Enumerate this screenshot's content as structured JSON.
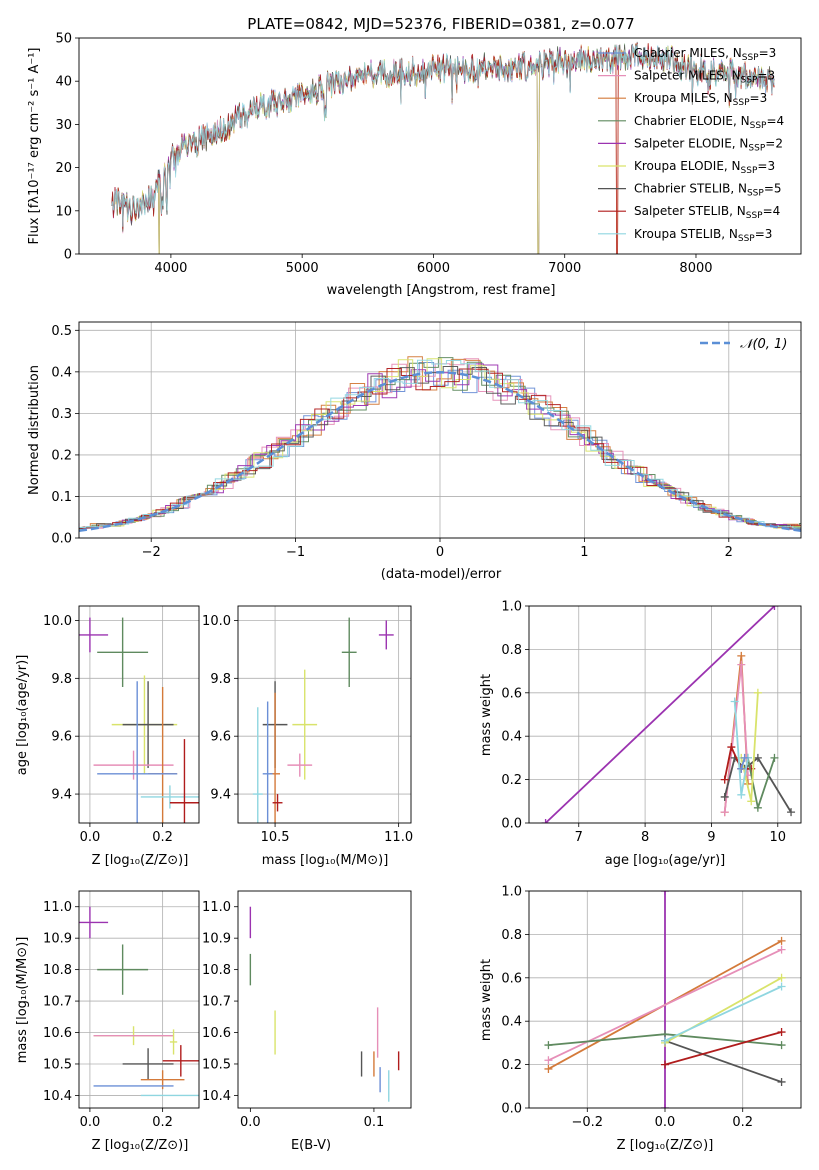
{
  "figure": {
    "title": "PLATE=0842, MJD=52376, FIBERID=0381, z=0.077"
  },
  "colors": {
    "chabrier_miles": "#6b8fd6",
    "salpeter_miles": "#e68fb8",
    "kroupa_miles": "#d47a3a",
    "chabrier_elodie": "#5f8a5f",
    "salpeter_elodie": "#9b33b0",
    "kroupa_elodie": "#d9e36b",
    "chabrier_stelib": "#555555",
    "salpeter_stelib": "#b01c1c",
    "kroupa_stelib": "#8fd6e0",
    "normal": "#5b8fd6",
    "grid": "#b0b0b0"
  },
  "chart_data": [
    {
      "id": "spectrum",
      "type": "line",
      "xlabel": "wavelength [Angstrom, rest frame]",
      "ylabel": "Flux [fλ10⁻¹⁷ erg cm⁻² s⁻¹ A⁻¹]",
      "xlim": [
        3300,
        8800
      ],
      "ylim": [
        0,
        50
      ],
      "xticks": [
        4000,
        5000,
        6000,
        7000,
        8000
      ],
      "yticks": [
        0,
        10,
        20,
        30,
        40,
        50
      ],
      "grid": false,
      "legend_position": "top-right",
      "continuum": {
        "x": [
          3550,
          3700,
          3850,
          3950,
          4050,
          4200,
          4400,
          4600,
          4800,
          5000,
          5200,
          5400,
          5600,
          5800,
          6000,
          6200,
          6400,
          6600,
          6800,
          7000,
          7200,
          7400,
          7600,
          7800,
          8000,
          8200,
          8400,
          8600
        ],
        "y": [
          13,
          10,
          13,
          19,
          24,
          26,
          29,
          33,
          35,
          37,
          39,
          41,
          42,
          42,
          43,
          43,
          43,
          43,
          44,
          45,
          45,
          45,
          46,
          45,
          43,
          42,
          41,
          40
        ]
      },
      "series": [
        {
          "name": "Chabrier MILES, N_SSP=3",
          "color_key": "chabrier_miles",
          "cutoff_x": null
        },
        {
          "name": "Salpeter MILES, N_SSP=3",
          "color_key": "salpeter_miles",
          "cutoff_x": null
        },
        {
          "name": "Kroupa MILES, N_SSP=3",
          "color_key": "kroupa_miles",
          "cutoff_x": 7400
        },
        {
          "name": "Chabrier ELODIE, N_SSP=4",
          "color_key": "chabrier_elodie",
          "cutoff_x": 6800
        },
        {
          "name": "Salpeter ELODIE, N_SSP=2",
          "color_key": "salpeter_elodie",
          "cutoff_x": 6800
        },
        {
          "name": "Kroupa ELODIE, N_SSP=3",
          "color_key": "kroupa_elodie",
          "cutoff_x": 6800
        },
        {
          "name": "Chabrier STELIB, N_SSP=5",
          "color_key": "chabrier_stelib",
          "cutoff_x": null
        },
        {
          "name": "Salpeter STELIB, N_SSP=4",
          "color_key": "salpeter_stelib",
          "cutoff_x": 7400
        },
        {
          "name": "Kroupa STELIB, N_SSP=3",
          "color_key": "kroupa_stelib",
          "cutoff_x": null
        }
      ]
    },
    {
      "id": "residuals",
      "type": "line",
      "xlabel": "(data-model)/error",
      "ylabel": "Normed distribution",
      "xlim": [
        -2.5,
        2.5
      ],
      "ylim": [
        0,
        0.52
      ],
      "xticks": [
        -2,
        -1,
        0,
        1,
        2
      ],
      "yticks": [
        0.0,
        0.1,
        0.2,
        0.3,
        0.4,
        0.5
      ],
      "grid": true,
      "legend_position": "top-right",
      "normal_label": "𝒩(0, 1)",
      "bin_width": 0.1
    },
    {
      "id": "z_age",
      "type": "scatter",
      "xlabel": "Z [log₁₀(Z/Z⊙)]",
      "ylabel": "age  [log₁₀(age/yr)]",
      "xlim": [
        -0.03,
        0.3
      ],
      "ylim": [
        9.3,
        10.05
      ],
      "xticks": [
        0.0,
        0.2
      ],
      "yticks": [
        9.4,
        9.6,
        9.8,
        10.0
      ],
      "grid": true,
      "points": [
        {
          "color_key": "salpeter_elodie",
          "x": 0.0,
          "xerr": 0.05,
          "y": 9.95,
          "yerr": 0.06
        },
        {
          "color_key": "chabrier_elodie",
          "x": 0.09,
          "xerr": 0.07,
          "y": 9.89,
          "yerr": 0.12
        },
        {
          "color_key": "kroupa_elodie",
          "x": 0.15,
          "xerr": 0.09,
          "y": 9.64,
          "yerr": 0.17
        },
        {
          "color_key": "chabrier_stelib",
          "x": 0.16,
          "xerr": 0.07,
          "y": 9.64,
          "yerr": 0.15
        },
        {
          "color_key": "salpeter_miles",
          "x": 0.12,
          "xerr": 0.11,
          "y": 9.5,
          "yerr": 0.05
        },
        {
          "color_key": "kroupa_miles",
          "x": 0.2,
          "xerr": 0.04,
          "y": 9.47,
          "yerr": 0.3
        },
        {
          "color_key": "chabrier_miles",
          "x": 0.13,
          "xerr": 0.11,
          "y": 9.47,
          "yerr": 0.32
        },
        {
          "color_key": "kroupa_stelib",
          "x": 0.22,
          "xerr": 0.08,
          "y": 9.39,
          "yerr": 0.04
        },
        {
          "color_key": "salpeter_stelib",
          "x": 0.26,
          "xerr": 0.04,
          "y": 9.37,
          "yerr": 0.22
        }
      ]
    },
    {
      "id": "mass_age",
      "type": "scatter",
      "xlabel": "mass [log₁₀(M/M⊙)]",
      "ylabel": "",
      "xlim": [
        10.35,
        11.05
      ],
      "ylim": [
        9.3,
        10.05
      ],
      "xticks": [
        10.5,
        11.0
      ],
      "yticks": [
        9.4,
        9.6,
        9.8,
        10.0
      ],
      "grid": true,
      "points": [
        {
          "color_key": "salpeter_elodie",
          "x": 10.95,
          "xerr": 0.03,
          "y": 9.95,
          "yerr": 0.05
        },
        {
          "color_key": "chabrier_elodie",
          "x": 10.8,
          "xerr": 0.03,
          "y": 9.89,
          "yerr": 0.12
        },
        {
          "color_key": "kroupa_elodie",
          "x": 10.62,
          "xerr": 0.05,
          "y": 9.64,
          "yerr": 0.19
        },
        {
          "color_key": "chabrier_stelib",
          "x": 10.5,
          "xerr": 0.05,
          "y": 9.64,
          "yerr": 0.15
        },
        {
          "color_key": "salpeter_miles",
          "x": 10.6,
          "xerr": 0.05,
          "y": 9.5,
          "yerr": 0.04
        },
        {
          "color_key": "kroupa_miles",
          "x": 10.5,
          "xerr": 0.02,
          "y": 9.47,
          "yerr": 0.28
        },
        {
          "color_key": "chabrier_miles",
          "x": 10.47,
          "xerr": 0.02,
          "y": 9.47,
          "yerr": 0.25
        },
        {
          "color_key": "kroupa_stelib",
          "x": 10.43,
          "xerr": 0.02,
          "y": 9.4,
          "yerr": 0.3
        },
        {
          "color_key": "salpeter_stelib",
          "x": 10.51,
          "xerr": 0.02,
          "y": 9.37,
          "yerr": 0.03
        }
      ]
    },
    {
      "id": "age_weight",
      "type": "line",
      "xlabel": "age  [log₁₀(age/yr)]",
      "ylabel": "mass weight",
      "xlim": [
        6.25,
        10.35
      ],
      "ylim": [
        0,
        1
      ],
      "xticks": [
        7,
        8,
        9,
        10
      ],
      "yticks": [
        0.0,
        0.2,
        0.4,
        0.6,
        0.8,
        1.0
      ],
      "grid": true,
      "series": [
        {
          "color_key": "salpeter_elodie",
          "x": [
            6.5,
            9.95
          ],
          "y": [
            0.0,
            1.0
          ]
        },
        {
          "color_key": "kroupa_miles",
          "x": [
            9.2,
            9.45,
            9.55
          ],
          "y": [
            0.05,
            0.77,
            0.18
          ]
        },
        {
          "color_key": "salpeter_miles",
          "x": [
            9.2,
            9.45,
            9.55
          ],
          "y": [
            0.05,
            0.73,
            0.22
          ]
        },
        {
          "color_key": "chabrier_stelib",
          "x": [
            9.2,
            9.35,
            9.5,
            9.7,
            10.2
          ],
          "y": [
            0.12,
            0.3,
            0.25,
            0.3,
            0.05
          ]
        },
        {
          "color_key": "salpeter_stelib",
          "x": [
            9.2,
            9.3,
            9.45,
            9.6
          ],
          "y": [
            0.2,
            0.35,
            0.25,
            0.25
          ]
        },
        {
          "color_key": "chabrier_elodie",
          "x": [
            9.55,
            9.7,
            9.95
          ],
          "y": [
            0.3,
            0.07,
            0.3
          ]
        },
        {
          "color_key": "kroupa_elodie",
          "x": [
            9.45,
            9.6,
            9.7
          ],
          "y": [
            0.3,
            0.1,
            0.6
          ]
        },
        {
          "color_key": "kroupa_stelib",
          "x": [
            9.35,
            9.45,
            9.55
          ],
          "y": [
            0.56,
            0.13,
            0.3
          ]
        },
        {
          "color_key": "chabrier_miles",
          "x": [
            9.45,
            9.5
          ],
          "y": [
            0.25,
            0.3
          ]
        }
      ]
    },
    {
      "id": "z_mass",
      "type": "scatter",
      "xlabel": "Z [log₁₀(Z/Z⊙)]",
      "ylabel": "mass [log₁₀(M/M⊙)]",
      "xlim": [
        -0.03,
        0.3
      ],
      "ylim": [
        10.36,
        11.05
      ],
      "xticks": [
        0.0,
        0.2
      ],
      "yticks": [
        10.4,
        10.5,
        10.6,
        10.7,
        10.8,
        10.9,
        11.0
      ],
      "grid": true,
      "points": [
        {
          "color_key": "salpeter_elodie",
          "x": 0.0,
          "xerr": 0.05,
          "y": 10.95,
          "yerr": 0.05
        },
        {
          "color_key": "chabrier_elodie",
          "x": 0.09,
          "xerr": 0.07,
          "y": 10.8,
          "yerr": 0.08
        },
        {
          "color_key": "kroupa_elodie",
          "x": 0.12,
          "xerr": 0.11,
          "y": 10.59,
          "yerr": 0.03
        },
        {
          "color_key": "salpeter_miles",
          "x": 0.12,
          "xerr": 0.11,
          "y": 10.59,
          "yerr": 0.0
        },
        {
          "color_key": "kroupa_elodie",
          "x": 0.23,
          "xerr": 0.01,
          "y": 10.57,
          "yerr": 0.04
        },
        {
          "color_key": "salpeter_stelib",
          "x": 0.25,
          "xerr": 0.05,
          "y": 10.51,
          "yerr": 0.05
        },
        {
          "color_key": "chabrier_stelib",
          "x": 0.16,
          "xerr": 0.07,
          "y": 10.5,
          "yerr": 0.05
        },
        {
          "color_key": "kroupa_miles",
          "x": 0.2,
          "xerr": 0.06,
          "y": 10.45,
          "yerr": 0.03
        },
        {
          "color_key": "chabrier_miles",
          "x": 0.12,
          "xerr": 0.11,
          "y": 10.43,
          "yerr": 0.0
        },
        {
          "color_key": "kroupa_stelib",
          "x": 0.22,
          "xerr": 0.08,
          "y": 10.4,
          "yerr": 0.0
        }
      ]
    },
    {
      "id": "ebv_mass",
      "type": "scatter",
      "xlabel": "E(B-V)",
      "ylabel": "",
      "xlim": [
        -0.01,
        0.13
      ],
      "ylim": [
        10.36,
        11.05
      ],
      "xticks": [
        0.0,
        0.1
      ],
      "yticks": [
        10.4,
        10.5,
        10.6,
        10.7,
        10.8,
        10.9,
        11.0
      ],
      "grid": false,
      "points": [
        {
          "color_key": "salpeter_elodie",
          "x": 0.0,
          "xerr": 0.0,
          "y": 10.95,
          "yerr": 0.05
        },
        {
          "color_key": "chabrier_elodie",
          "x": 0.0,
          "xerr": 0.0,
          "y": 10.8,
          "yerr": 0.05
        },
        {
          "color_key": "kroupa_elodie",
          "x": 0.02,
          "xerr": 0.0,
          "y": 10.6,
          "yerr": 0.07
        },
        {
          "color_key": "chabrier_stelib",
          "x": 0.09,
          "xerr": 0.0,
          "y": 10.5,
          "yerr": 0.04
        },
        {
          "color_key": "kroupa_miles",
          "x": 0.1,
          "xerr": 0.0,
          "y": 10.5,
          "yerr": 0.04
        },
        {
          "color_key": "salpeter_miles",
          "x": 0.103,
          "xerr": 0.0,
          "y": 10.6,
          "yerr": 0.08
        },
        {
          "color_key": "chabrier_miles",
          "x": 0.105,
          "xerr": 0.0,
          "y": 10.45,
          "yerr": 0.04
        },
        {
          "color_key": "kroupa_stelib",
          "x": 0.112,
          "xerr": 0.0,
          "y": 10.43,
          "yerr": 0.05
        },
        {
          "color_key": "salpeter_stelib",
          "x": 0.12,
          "xerr": 0.0,
          "y": 10.51,
          "yerr": 0.03
        }
      ]
    },
    {
      "id": "z_weight",
      "type": "line",
      "xlabel": "Z [log₁₀(Z/Z⊙)]",
      "ylabel": "mass weight",
      "xlim": [
        -0.35,
        0.35
      ],
      "ylim": [
        0,
        1
      ],
      "xticks": [
        -0.2,
        0.0,
        0.2
      ],
      "yticks": [
        0.0,
        0.2,
        0.4,
        0.6,
        0.8,
        1.0
      ],
      "grid": true,
      "series": [
        {
          "color_key": "salpeter_elodie",
          "x": [
            0.0,
            0.0
          ],
          "y": [
            0.0,
            1.0
          ]
        },
        {
          "color_key": "kroupa_miles",
          "x": [
            -0.3,
            0.3
          ],
          "y": [
            0.18,
            0.77
          ]
        },
        {
          "color_key": "salpeter_miles",
          "x": [
            -0.3,
            0.3
          ],
          "y": [
            0.22,
            0.73
          ]
        },
        {
          "color_key": "chabrier_elodie",
          "x": [
            -0.3,
            0.0,
            0.3
          ],
          "y": [
            0.29,
            0.34,
            0.29
          ]
        },
        {
          "color_key": "chabrier_stelib",
          "x": [
            0.0,
            0.3
          ],
          "y": [
            0.31,
            0.12
          ]
        },
        {
          "color_key": "salpeter_stelib",
          "x": [
            0.0,
            0.3
          ],
          "y": [
            0.2,
            0.35
          ]
        },
        {
          "color_key": "kroupa_elodie",
          "x": [
            0.0,
            0.3
          ],
          "y": [
            0.3,
            0.6
          ]
        },
        {
          "color_key": "kroupa_stelib",
          "x": [
            0.0,
            0.3
          ],
          "y": [
            0.31,
            0.56
          ]
        }
      ]
    }
  ]
}
